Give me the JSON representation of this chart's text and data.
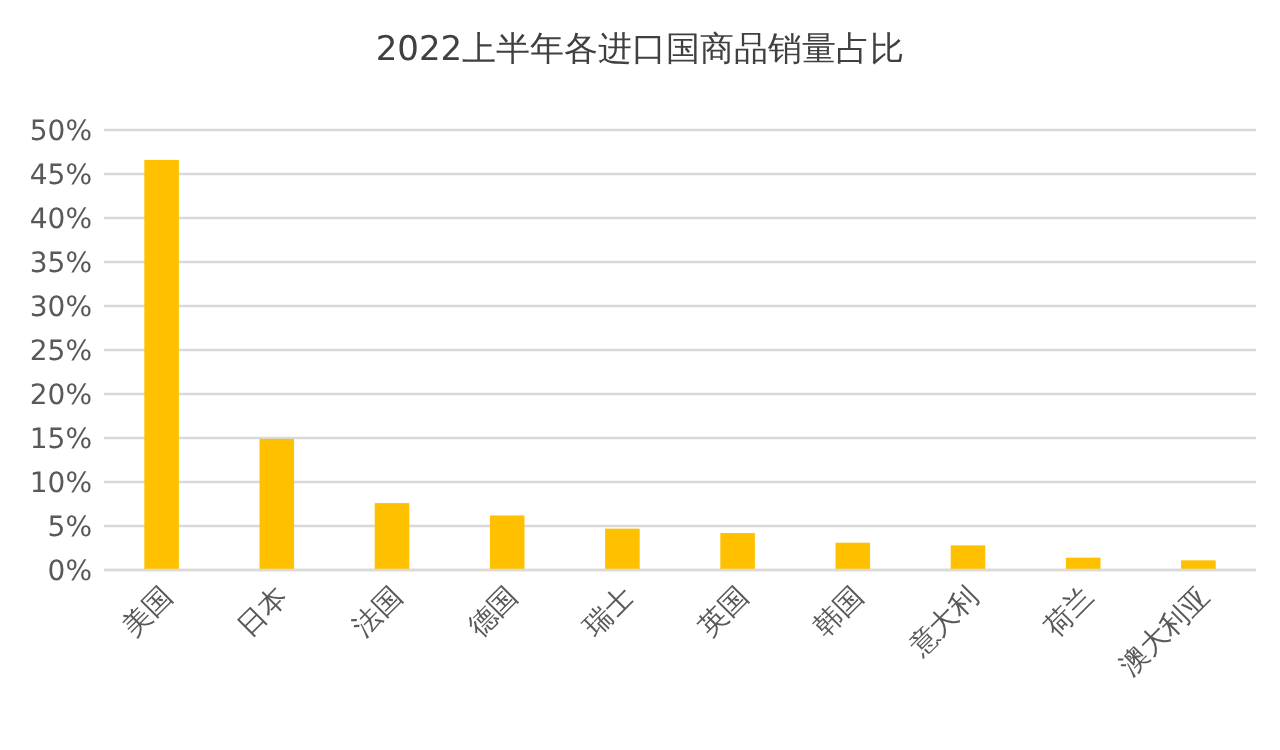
{
  "chart_data": {
    "type": "bar",
    "title": "2022上半年各进口国商品销量占比",
    "categories": [
      "美国",
      "日本",
      "法国",
      "德国",
      "瑞士",
      "英国",
      "韩国",
      "意大利",
      "荷兰",
      "澳大利亚"
    ],
    "values": [
      46.6,
      14.9,
      7.6,
      6.2,
      4.7,
      4.2,
      3.1,
      2.8,
      1.4,
      1.1
    ],
    "color": "#ffc000",
    "ylim": [
      0,
      50
    ],
    "yticks": [
      {
        "value": 0,
        "label": "0%"
      },
      {
        "value": 5,
        "label": "5%"
      },
      {
        "value": 10,
        "label": "10%"
      },
      {
        "value": 15,
        "label": "15%"
      },
      {
        "value": 20,
        "label": "20%"
      },
      {
        "value": 25,
        "label": "25%"
      },
      {
        "value": 30,
        "label": "30%"
      },
      {
        "value": 35,
        "label": "35%"
      },
      {
        "value": 40,
        "label": "40%"
      },
      {
        "value": 45,
        "label": "45%"
      },
      {
        "value": 50,
        "label": "50%"
      }
    ],
    "grid": "y"
  }
}
